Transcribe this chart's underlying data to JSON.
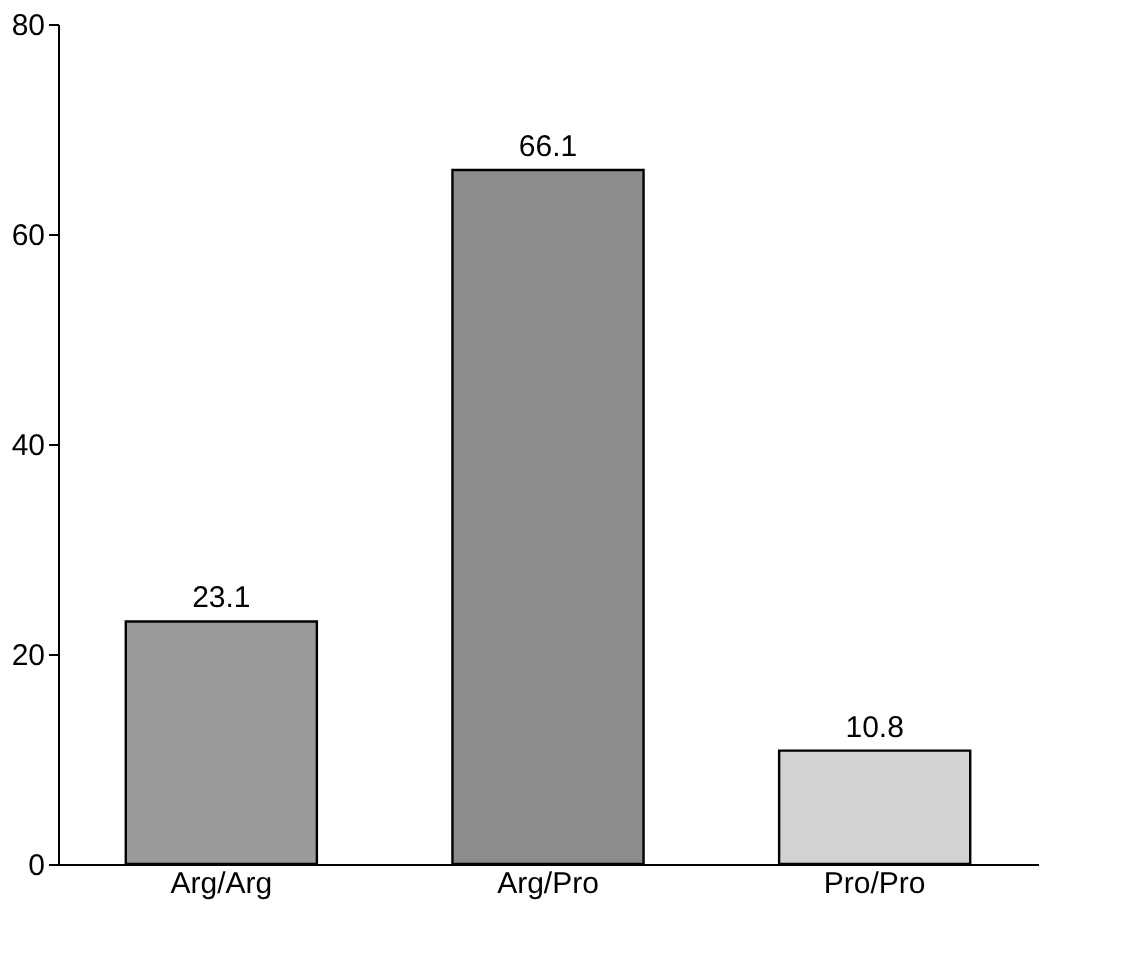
{
  "chart_data": {
    "type": "bar",
    "categories": [
      "Arg/Arg",
      "Arg/Pro",
      "Pro/Pro"
    ],
    "values": [
      23.1,
      66.1,
      10.8
    ],
    "colors": [
      "#9a9a9a",
      "#8c8c8c",
      "#d2d2d2"
    ],
    "ylim": [
      0,
      80
    ],
    "yticks": [
      0,
      20,
      40,
      60,
      80
    ],
    "grid": false,
    "data_labels": true
  }
}
